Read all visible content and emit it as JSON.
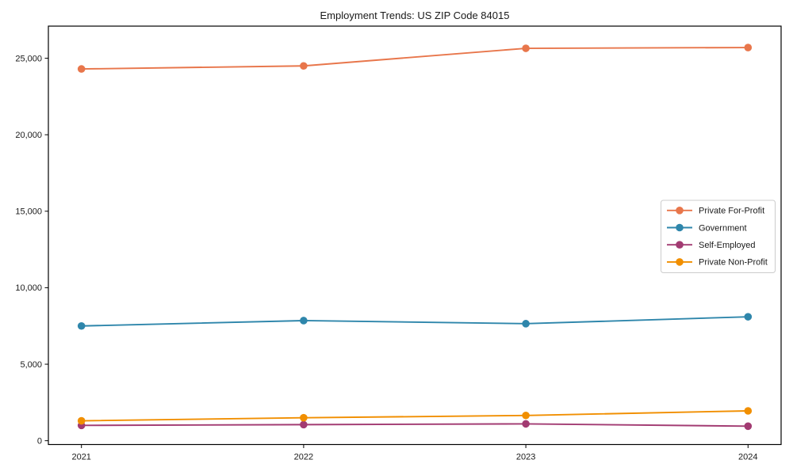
{
  "window": {
    "background_color": "#ffffff",
    "axis_color": "#000000",
    "legend_border_color": "#cccccc",
    "legend_background_color": "#ffffff"
  },
  "chart_data": {
    "type": "line",
    "title": "Employment Trends: US ZIP Code 84015",
    "xlabel": "",
    "ylabel": "",
    "grid": false,
    "legend_position": "center right",
    "marker": "circle",
    "x_categories": [
      "2021",
      "2022",
      "2023",
      "2024"
    ],
    "series": [
      {
        "name": "Private For-Profit",
        "color": "#E8764B",
        "values": [
          24300,
          24500,
          25650,
          25700
        ]
      },
      {
        "name": "Government",
        "color": "#2E86AB",
        "values": [
          7500,
          7850,
          7650,
          8100
        ]
      },
      {
        "name": "Self-Employed",
        "color": "#A23B72",
        "values": [
          1000,
          1050,
          1100,
          950
        ]
      },
      {
        "name": "Private Non-Profit",
        "color": "#F18F01",
        "values": [
          1300,
          1500,
          1650,
          1950
        ]
      }
    ],
    "ylim": [
      -250,
      27100
    ],
    "yticks": {
      "values": [
        0,
        5000,
        10000,
        15000,
        20000,
        25000
      ],
      "labels": [
        "0",
        "5,000",
        "10,000",
        "15,000",
        "20,000",
        "25,000"
      ]
    }
  }
}
